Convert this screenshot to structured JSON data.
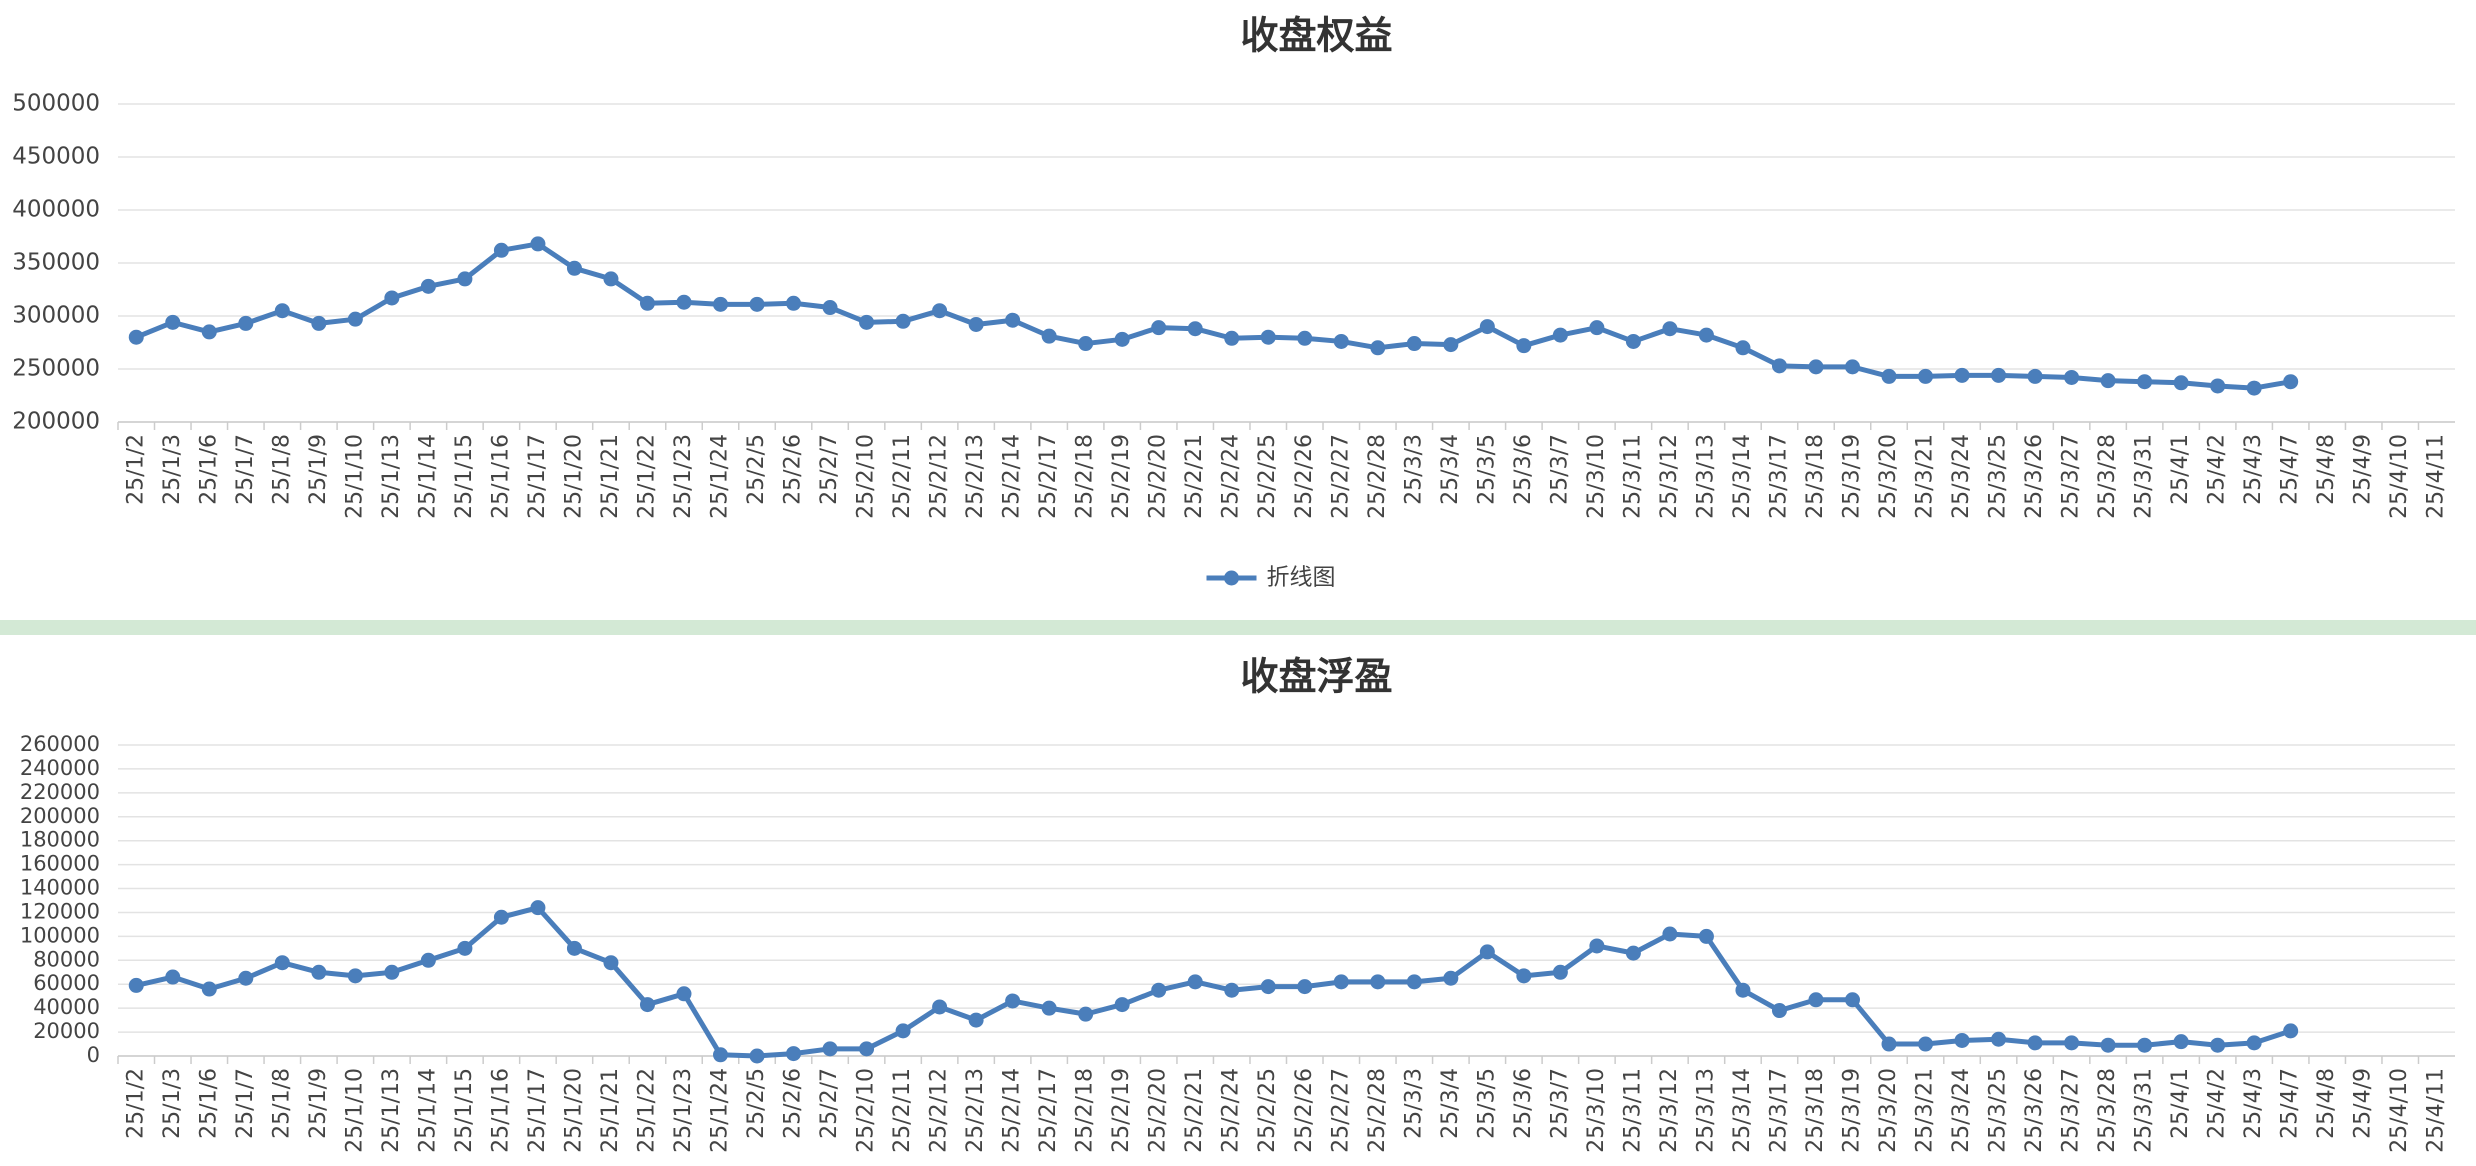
{
  "chart_data": [
    {
      "type": "line",
      "title": "收盘权益",
      "categories": [
        "25/1/2",
        "25/1/3",
        "25/1/6",
        "25/1/7",
        "25/1/8",
        "25/1/9",
        "25/1/10",
        "25/1/13",
        "25/1/14",
        "25/1/15",
        "25/1/16",
        "25/1/17",
        "25/1/20",
        "25/1/21",
        "25/1/22",
        "25/1/23",
        "25/1/24",
        "25/2/5",
        "25/2/6",
        "25/2/7",
        "25/2/10",
        "25/2/11",
        "25/2/12",
        "25/2/13",
        "25/2/14",
        "25/2/17",
        "25/2/18",
        "25/2/19",
        "25/2/20",
        "25/2/21",
        "25/2/24",
        "25/2/25",
        "25/2/26",
        "25/2/27",
        "25/2/28",
        "25/3/3",
        "25/3/4",
        "25/3/5",
        "25/3/6",
        "25/3/7",
        "25/3/10",
        "25/3/11",
        "25/3/12",
        "25/3/13",
        "25/3/14",
        "25/3/17",
        "25/3/18",
        "25/3/19",
        "25/3/20",
        "25/3/21",
        "25/3/24",
        "25/3/25",
        "25/3/26",
        "25/3/27",
        "25/3/28",
        "25/3/31",
        "25/4/1",
        "25/4/2",
        "25/4/3",
        "25/4/7",
        "25/4/8",
        "25/4/9",
        "25/4/10",
        "25/4/11"
      ],
      "series": [
        {
          "name": "折线图",
          "color": "#4a7ebb",
          "values": [
            280000,
            294000,
            285000,
            293000,
            305000,
            293000,
            297000,
            317000,
            328000,
            335000,
            362000,
            368000,
            345000,
            335000,
            312000,
            313000,
            311000,
            311000,
            312000,
            308000,
            294000,
            295000,
            305000,
            292000,
            296000,
            281000,
            274000,
            278000,
            289000,
            288000,
            279000,
            280000,
            279000,
            276000,
            270000,
            274000,
            273000,
            290000,
            272000,
            282000,
            289000,
            276000,
            288000,
            282000,
            270000,
            253000,
            252000,
            252000,
            243000,
            243000,
            244000,
            244000,
            243000,
            242000,
            239000,
            238000,
            237000,
            234000,
            232000,
            238000,
            null,
            null,
            null,
            null
          ]
        }
      ],
      "ylim": [
        200000,
        500000
      ],
      "yticks": [
        200000,
        250000,
        300000,
        350000,
        400000,
        450000,
        500000
      ],
      "grid": true,
      "legend": "bottom"
    },
    {
      "type": "line",
      "title": "收盘浮盈",
      "categories": [
        "25/1/2",
        "25/1/3",
        "25/1/6",
        "25/1/7",
        "25/1/8",
        "25/1/9",
        "25/1/10",
        "25/1/13",
        "25/1/14",
        "25/1/15",
        "25/1/16",
        "25/1/17",
        "25/1/20",
        "25/1/21",
        "25/1/22",
        "25/1/23",
        "25/1/24",
        "25/2/5",
        "25/2/6",
        "25/2/7",
        "25/2/10",
        "25/2/11",
        "25/2/12",
        "25/2/13",
        "25/2/14",
        "25/2/17",
        "25/2/18",
        "25/2/19",
        "25/2/20",
        "25/2/21",
        "25/2/24",
        "25/2/25",
        "25/2/26",
        "25/2/27",
        "25/2/28",
        "25/3/3",
        "25/3/4",
        "25/3/5",
        "25/3/6",
        "25/3/7",
        "25/3/10",
        "25/3/11",
        "25/3/12",
        "25/3/13",
        "25/3/14",
        "25/3/17",
        "25/3/18",
        "25/3/19",
        "25/3/20",
        "25/3/21",
        "25/3/24",
        "25/3/25",
        "25/3/26",
        "25/3/27",
        "25/3/28",
        "25/3/31",
        "25/4/1",
        "25/4/2",
        "25/4/3",
        "25/4/7",
        "25/4/8",
        "25/4/9",
        "25/4/10",
        "25/4/11"
      ],
      "series": [
        {
          "color": "#4a7ebb",
          "values": [
            59000,
            66000,
            56000,
            65000,
            78000,
            70000,
            67000,
            70000,
            80000,
            90000,
            116000,
            124000,
            90000,
            78000,
            43000,
            52000,
            1000,
            0,
            2000,
            6000,
            6000,
            21000,
            41000,
            30000,
            46000,
            40000,
            35000,
            43000,
            55000,
            62000,
            55000,
            58000,
            58000,
            62000,
            62000,
            62000,
            65000,
            87000,
            67000,
            70000,
            92000,
            86000,
            102000,
            100000,
            55000,
            38000,
            47000,
            47000,
            10000,
            10000,
            13000,
            14000,
            11000,
            11000,
            9000,
            9000,
            12000,
            9000,
            11000,
            21000,
            null,
            null,
            null,
            null
          ]
        }
      ],
      "ylim": [
        0,
        260000
      ],
      "yticks": [
        0,
        20000,
        40000,
        60000,
        80000,
        100000,
        120000,
        140000,
        160000,
        180000,
        200000,
        220000,
        240000,
        260000
      ],
      "grid": true
    }
  ]
}
